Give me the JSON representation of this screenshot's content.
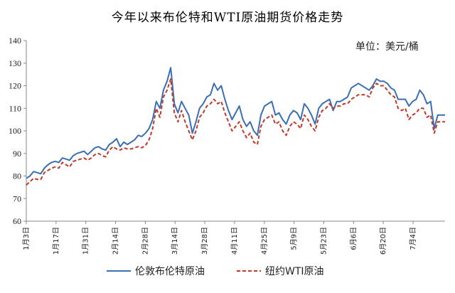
{
  "chart_data": {
    "type": "line",
    "title": "今年以来布伦特和WTI原油期货价格走势",
    "unit_label": "单位：美元/桶",
    "ylim": [
      60,
      140
    ],
    "yticks": [
      60,
      70,
      80,
      90,
      100,
      110,
      120,
      130,
      140
    ],
    "xlabel": "",
    "ylabel": "",
    "x_tick_labels": [
      "1月3日",
      "1月17日",
      "1月31日",
      "2月14日",
      "2月28日",
      "3月14日",
      "3月28日",
      "4月11日",
      "4月25日",
      "5月9日",
      "5月23日",
      "6月6日",
      "6月20日",
      "7月4日"
    ],
    "grid": false,
    "legend": "bottom",
    "series": [
      {
        "name": "伦敦布伦特原油",
        "color": "#3a6eb5",
        "dash": false,
        "values": [
          79.0,
          80.0,
          82.0,
          81.5,
          81.0,
          83.5,
          85.0,
          86.0,
          86.5,
          86.0,
          88.0,
          87.5,
          87.0,
          89.0,
          90.0,
          90.5,
          91.0,
          89.5,
          91.0,
          92.5,
          93.0,
          92.0,
          91.5,
          94.0,
          95.0,
          96.5,
          93.0,
          95.0,
          94.0,
          95.0,
          96.0,
          98.0,
          97.5,
          99.0,
          101.0,
          105.0,
          113.0,
          110.0,
          118.0,
          122.0,
          128.0,
          112.0,
          108.0,
          113.0,
          110.0,
          107.0,
          99.0,
          104.0,
          110.0,
          112.0,
          115.0,
          116.0,
          121.0,
          118.0,
          120.0,
          114.0,
          109.0,
          105.0,
          108.0,
          111.0,
          105.0,
          102.0,
          104.0,
          100.0,
          98.0,
          107.0,
          111.0,
          112.0,
          113.0,
          107.0,
          108.0,
          105.0,
          103.0,
          107.0,
          109.0,
          108.0,
          105.0,
          112.0,
          110.0,
          107.0,
          103.0,
          110.0,
          112.0,
          113.0,
          114.0,
          109.0,
          113.0,
          113.0,
          114.0,
          115.0,
          119.0,
          120.0,
          121.0,
          120.0,
          119.0,
          118.0,
          120.0,
          123.0,
          122.0,
          122.0,
          121.0,
          119.0,
          118.0,
          114.0,
          114.0,
          114.0,
          111.0,
          113.0,
          114.0,
          118.0,
          116.0,
          112.0,
          113.0,
          101.0,
          107.0,
          107.0,
          107.0
        ]
      },
      {
        "name": "纽约WTI原油",
        "color": "#c0392b",
        "dash": true,
        "values": [
          76.0,
          77.5,
          79.0,
          78.5,
          78.5,
          81.5,
          82.5,
          83.5,
          84.0,
          83.5,
          86.0,
          85.0,
          84.0,
          86.5,
          87.0,
          87.5,
          88.0,
          87.0,
          88.0,
          89.5,
          90.0,
          89.0,
          88.5,
          91.5,
          93.0,
          92.0,
          91.5,
          92.5,
          92.0,
          92.0,
          92.5,
          93.0,
          92.5,
          93.5,
          96.0,
          101.0,
          110.0,
          106.0,
          115.0,
          118.0,
          123.0,
          108.0,
          104.0,
          109.0,
          104.0,
          100.0,
          96.0,
          100.0,
          106.0,
          108.0,
          111.0,
          112.0,
          114.0,
          112.0,
          113.0,
          108.0,
          104.0,
          100.0,
          102.0,
          104.0,
          100.0,
          97.0,
          99.0,
          95.0,
          94.0,
          102.0,
          105.0,
          106.0,
          107.0,
          103.0,
          104.0,
          100.0,
          98.0,
          102.0,
          104.0,
          103.0,
          101.0,
          107.0,
          105.0,
          102.0,
          100.0,
          106.0,
          109.0,
          110.0,
          112.0,
          110.0,
          111.0,
          111.0,
          112.0,
          112.0,
          114.0,
          115.0,
          116.0,
          116.0,
          116.0,
          115.0,
          119.0,
          121.0,
          120.0,
          120.0,
          118.0,
          116.0,
          115.0,
          110.0,
          109.0,
          110.0,
          105.0,
          107.0,
          108.0,
          110.0,
          110.0,
          106.0,
          107.0,
          99.0,
          104.0,
          104.0,
          104.0
        ]
      }
    ]
  }
}
